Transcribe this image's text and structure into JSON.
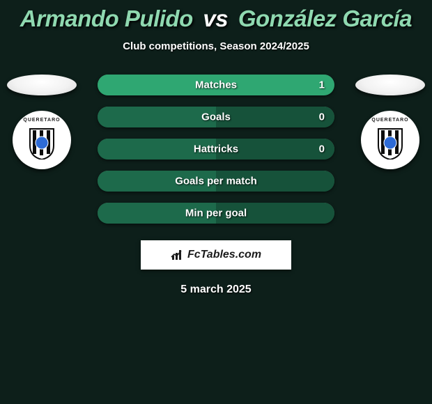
{
  "background_color": "#0d1f1a",
  "title": {
    "player1": "Armando Pulido",
    "vs": "vs",
    "player2": "González García",
    "fontsize": 33,
    "color_p1": "#8fd9b0",
    "color_vs": "#ffffff",
    "color_p2": "#8fd9b0"
  },
  "subtitle": {
    "text": "Club competitions, Season 2024/2025",
    "fontsize": 15,
    "color": "#ffffff"
  },
  "players": {
    "left": {
      "club_text": "QUERETARO",
      "shield_stripes": "#0c0c0c",
      "shield_ball": "#2e6bd6"
    },
    "right": {
      "club_text": "QUERETARO",
      "shield_stripes": "#0c0c0c",
      "shield_ball": "#2e6bd6"
    }
  },
  "bars": {
    "track_left": "#1d6a4b",
    "track_right": "#16523a",
    "highlight": "#2fa772",
    "label_color": "#ffffff",
    "label_fontsize": 15,
    "rows": [
      {
        "label": "Matches",
        "left": "",
        "right": "1",
        "left_pct": 0,
        "right_pct": 100
      },
      {
        "label": "Goals",
        "left": "",
        "right": "0",
        "left_pct": 50,
        "right_pct": 50
      },
      {
        "label": "Hattricks",
        "left": "",
        "right": "0",
        "left_pct": 50,
        "right_pct": 50
      },
      {
        "label": "Goals per match",
        "left": "",
        "right": "",
        "left_pct": 50,
        "right_pct": 50
      },
      {
        "label": "Min per goal",
        "left": "",
        "right": "",
        "left_pct": 50,
        "right_pct": 50
      }
    ]
  },
  "watermark": {
    "text": "FcTables.com",
    "icon_color": "#1b1b1b"
  },
  "date": {
    "text": "5 march 2025",
    "fontsize": 16,
    "color": "#ffffff"
  }
}
